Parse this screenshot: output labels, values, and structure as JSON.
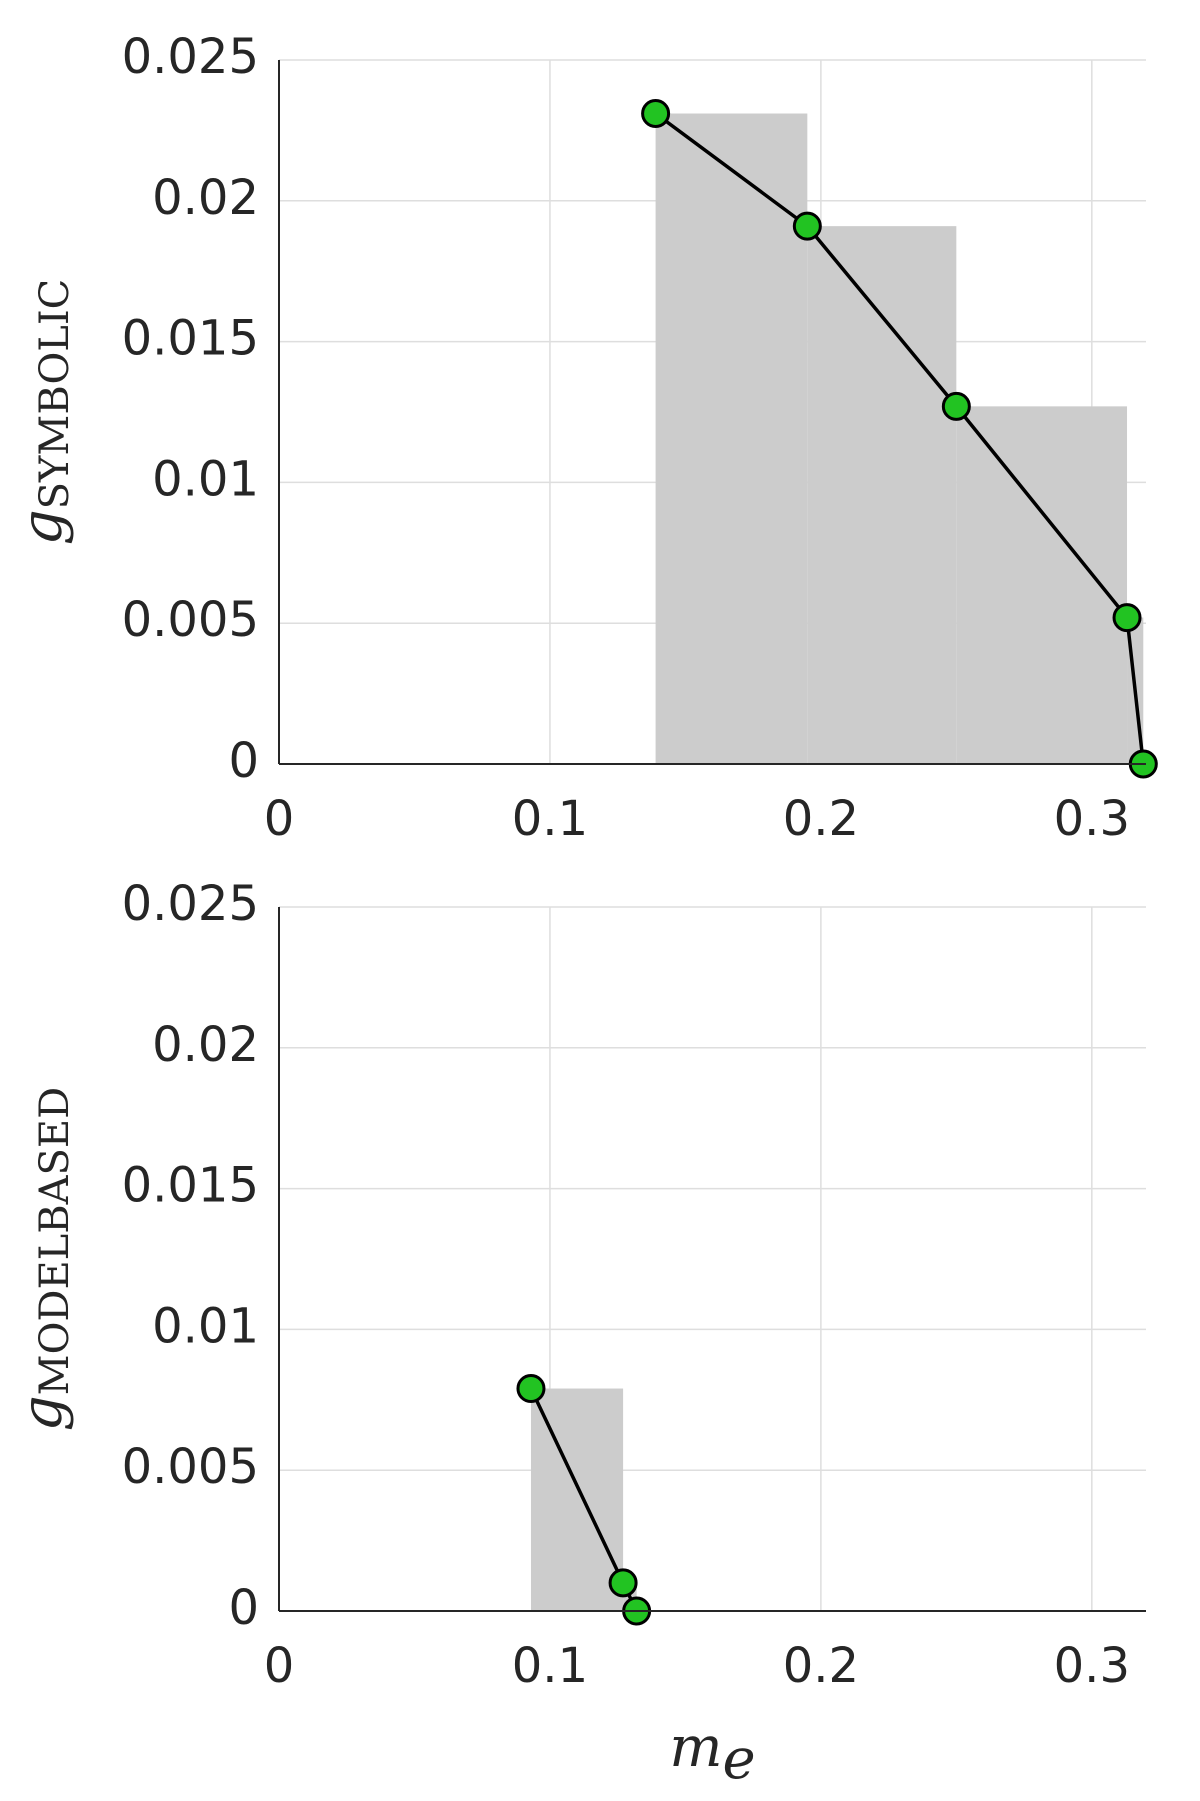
{
  "chart_data": [
    {
      "type": "line",
      "ylabel": "g",
      "ylabel_subscript": "SYMBOLIC",
      "x": [
        0.139,
        0.195,
        0.25,
        0.313,
        0.319
      ],
      "values": [
        0.0231,
        0.0191,
        0.0127,
        0.0052,
        0.0
      ],
      "xlim": [
        0,
        0.32
      ],
      "ylim": [
        0,
        0.025
      ],
      "xticks": [
        0,
        0.1,
        0.2,
        0.3
      ],
      "yticks": [
        0,
        0.005,
        0.01,
        0.015,
        0.02,
        0.025
      ],
      "grid": true,
      "color": "#000000",
      "marker_color": "#22c322",
      "area_color": "#cccccc"
    },
    {
      "type": "line",
      "ylabel": "g",
      "ylabel_subscript": "MODELBASED",
      "xlabel": "m",
      "xlabel_subscript": "e",
      "x": [
        0.093,
        0.127,
        0.132
      ],
      "values": [
        0.0079,
        0.001,
        0.0
      ],
      "xlim": [
        0,
        0.32
      ],
      "ylim": [
        0,
        0.025
      ],
      "xticks": [
        0,
        0.1,
        0.2,
        0.3
      ],
      "yticks": [
        0,
        0.005,
        0.01,
        0.015,
        0.02,
        0.025
      ],
      "grid": true,
      "color": "#000000",
      "marker_color": "#22c322",
      "area_color": "#cccccc"
    }
  ]
}
